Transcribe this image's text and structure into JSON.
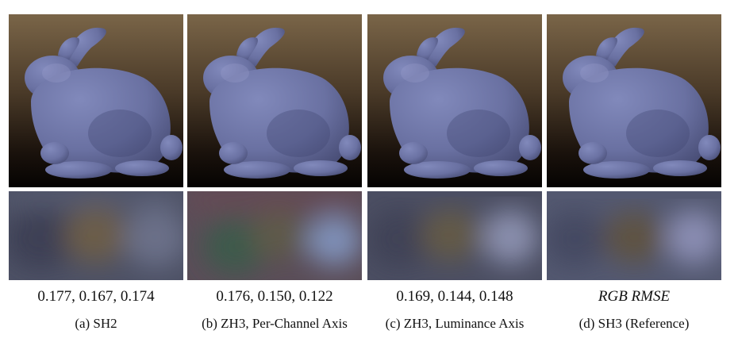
{
  "figure": {
    "panels": [
      {
        "id": "sh2",
        "metric": "0.177, 0.167, 0.174",
        "caption": "(a) SH2",
        "probe_colors": [
          "#4e5366",
          "#675a4a",
          "#5b5f72"
        ],
        "bunny_tint": "#6b73a6"
      },
      {
        "id": "zh3-per-channel",
        "metric": "0.176, 0.150, 0.122",
        "caption": "(b) ZH3, Per-Channel Axis",
        "probe_colors": [
          "#5d4a55",
          "#3f5a4f",
          "#6f7fa8"
        ],
        "bunny_tint": "#7377a8"
      },
      {
        "id": "zh3-luminance",
        "metric": "0.169, 0.144, 0.148",
        "caption": "(c) ZH3, Luminance Axis",
        "probe_colors": [
          "#4d5064",
          "#625847",
          "#7a80a0"
        ],
        "bunny_tint": "#6a71a2"
      },
      {
        "id": "sh3-reference",
        "metric": "RGB RMSE",
        "caption": "(d) SH3 (Reference)",
        "probe_colors": [
          "#555a72",
          "#5e5343",
          "#7b7fa4"
        ],
        "bunny_tint": "#6870a4"
      }
    ]
  }
}
